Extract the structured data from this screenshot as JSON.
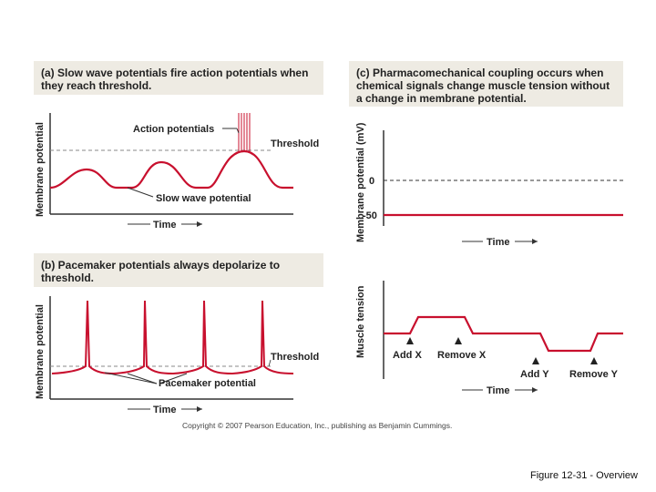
{
  "panel_a": {
    "tag": "(a)",
    "title_bold": "Slow wave potentials",
    "title_rest": " fire action potentials when they reach threshold.",
    "y_label": "Membrane potential",
    "x_label": "Time",
    "threshold_label": "Threshold",
    "action_potentials_label": "Action potentials",
    "slow_wave_label": "Slow wave potential"
  },
  "panel_b": {
    "tag": "(b)",
    "title_bold": "Pacemaker potentials",
    "title_rest": " always depolarize to threshold.",
    "y_label": "Membrane potential",
    "x_label": "Time",
    "threshold_label": "Threshold",
    "pacemaker_label": "Pacemaker potential"
  },
  "panel_c": {
    "tag": "(c)",
    "title_bold": "Pharmacomechanical coupling",
    "title_rest": " occurs when chemical signals change muscle tension without a change in membrane potential.",
    "top_y_label": "Membrane potential (mV)",
    "tick_0": "0",
    "tick_minus50": "-50",
    "top_x_label": "Time",
    "bottom_y_label": "Muscle tension",
    "bottom_x_label": "Time",
    "add_x": "Add X",
    "remove_x": "Remove X",
    "add_y": "Add Y",
    "remove_y": "Remove Y"
  },
  "copyright": "Copyright © 2007 Pearson Education, Inc., publishing as Benjamin Cummings.",
  "caption": "Figure 12-31 - Overview",
  "colors": {
    "trace": "#c8102e",
    "axis": "#333333",
    "threshold": "#888888",
    "panel_bg": "#eeebe3"
  }
}
